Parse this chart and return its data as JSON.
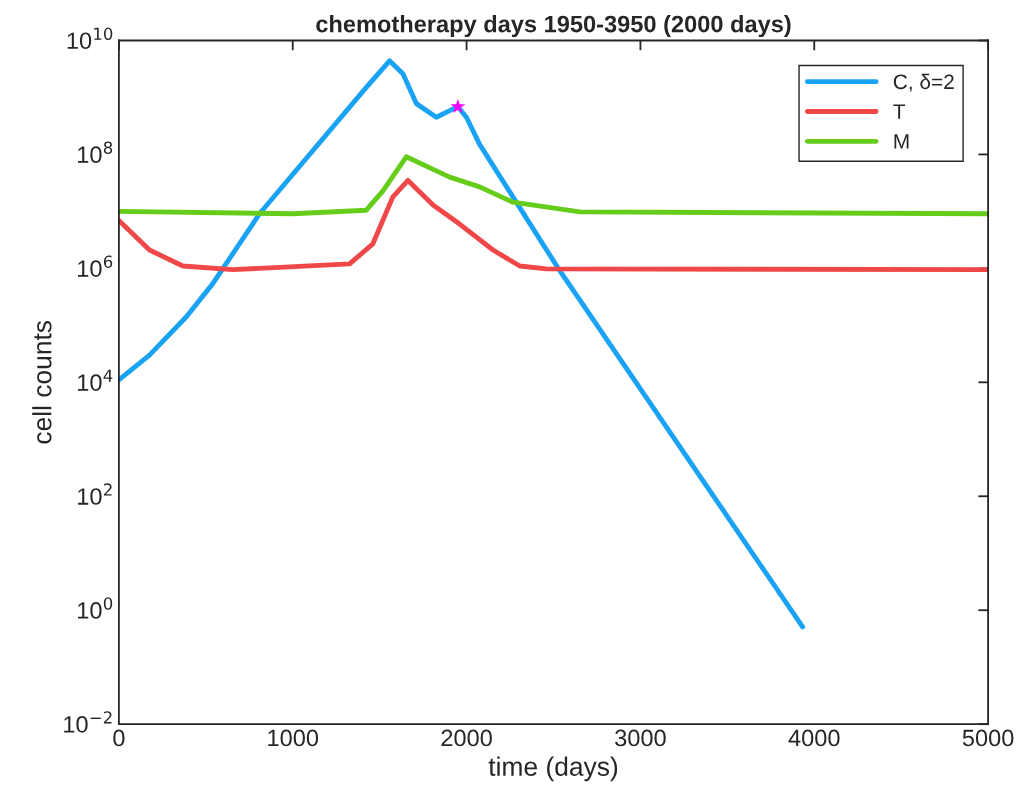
{
  "chart_data": {
    "type": "line",
    "title": "chemotherapy days 1950-3950 (2000 days)",
    "xlabel": "time (days)",
    "ylabel": "cell counts",
    "log": "y",
    "grid": false,
    "legend": "top right",
    "line_style": "solid",
    "xlim": [
      0,
      5000
    ],
    "xticks": [
      0,
      1000,
      2000,
      3000,
      4000,
      5000
    ],
    "ylim": [
      0.01,
      10000000000.0
    ],
    "yticks": [
      {
        "value": 0.01,
        "label": "10$^{−2}$"
      },
      {
        "value": 1,
        "label": "10$^{0}$"
      },
      {
        "value": 100,
        "label": "10$^{2}$"
      },
      {
        "value": 10000.0,
        "label": "10$^{4}$"
      },
      {
        "value": 1000000.0,
        "label": "10$^{6}$"
      },
      {
        "value": 100000000.0,
        "label": "10$^{8}$"
      },
      {
        "value": 10000000000.0,
        "label": "10$^{10}$"
      }
    ],
    "series": [
      {
        "name": "C, δ=2",
        "color": "#1aa3f5",
        "x": [
          0,
          176,
          387,
          540,
          809,
          1423,
          1557,
          1634,
          1711,
          1826,
          1950,
          1999,
          2075,
          2536,
          2651,
          3933
        ],
        "values": [
          11000.0,
          30000.0,
          140000.0,
          540000.0,
          9100000.0,
          1500000000.0,
          4400000000.0,
          2600000000.0,
          780000000.0,
          450000000.0,
          690000000.0,
          450000000.0,
          150000000.0,
          910000.0,
          280000.0,
          0.51
        ]
      },
      {
        "name": "T",
        "color": "#f04848",
        "x": [
          0,
          176,
          368,
          655,
          1327,
          1461,
          1576,
          1663,
          1807,
          1960,
          2152,
          2306,
          2459,
          5000
        ],
        "values": [
          6900000.0,
          2100000.0,
          1100000.0,
          950000.0,
          1200000.0,
          2700000.0,
          18000000.0,
          35000000.0,
          13000000.0,
          6000000.0,
          2100000.0,
          1100000.0,
          980000.0,
          950000.0
        ]
      },
      {
        "name": "M",
        "color": "#66cc1a",
        "x": [
          0,
          1000,
          1423,
          1519,
          1653,
          1903,
          2075,
          2267,
          2651,
          5000
        ],
        "values": [
          10000000.0,
          9100000.0,
          10500000.0,
          23000000.0,
          91000000.0,
          40000000.0,
          27000000.0,
          14500000.0,
          9800000.0,
          9100000.0
        ]
      },
      {
        "type": "scatter",
        "marker": "star",
        "color": "#ff00ff",
        "x": [
          1950
        ],
        "values": [
          690000000.0
        ]
      }
    ]
  }
}
